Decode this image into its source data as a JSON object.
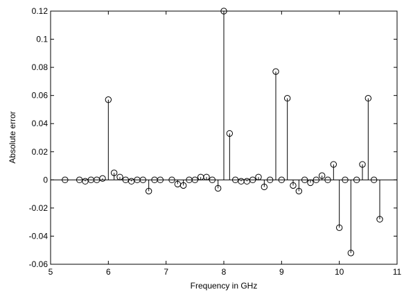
{
  "chart_data": {
    "type": "stem",
    "title": "",
    "xlabel": "Frequency in GHz",
    "ylabel": "Absolute error",
    "xlim": [
      5,
      11
    ],
    "ylim": [
      -0.06,
      0.12
    ],
    "xticks": [
      "5",
      "6",
      "7",
      "8",
      "9",
      "10",
      "11"
    ],
    "yticks": [
      "-0.06",
      "-0.04",
      "-0.02",
      "0",
      "0.02",
      "0.04",
      "0.06",
      "0.08",
      "0.1",
      "0.12"
    ],
    "grid": false,
    "legend": "none",
    "colors": {
      "stem": "#000000",
      "axis": "#000000",
      "background": "#ffffff"
    },
    "series": [
      {
        "x": [
          5.25,
          5.5,
          5.6,
          5.7,
          5.8,
          5.9,
          6.0,
          6.1,
          6.2,
          6.3,
          6.4,
          6.5,
          6.6,
          6.7,
          6.8,
          6.9,
          7.1,
          7.2,
          7.3,
          7.4,
          7.5,
          7.6,
          7.7,
          7.8,
          7.9,
          8.0,
          8.1,
          8.2,
          8.3,
          8.4,
          8.5,
          8.6,
          8.7,
          8.8,
          8.9,
          9.0,
          9.1,
          9.2,
          9.3,
          9.4,
          9.5,
          9.6,
          9.7,
          9.8,
          9.9,
          10.0,
          10.1,
          10.2,
          10.3,
          10.4,
          10.5,
          10.6,
          10.7
        ],
        "y": [
          0.0,
          0.0,
          -0.001,
          0.0,
          0.0,
          0.001,
          0.057,
          0.005,
          0.002,
          0.0,
          -0.001,
          0.0,
          0.0,
          -0.008,
          0.0,
          0.0,
          0.0,
          -0.003,
          -0.004,
          0.0,
          0.0,
          0.002,
          0.002,
          0.0,
          -0.006,
          0.12,
          0.033,
          0.0,
          -0.001,
          -0.001,
          0.0,
          0.002,
          -0.005,
          0.0,
          0.077,
          0.0,
          0.058,
          -0.004,
          -0.008,
          0.0,
          -0.002,
          0.0,
          0.003,
          0.0,
          0.011,
          -0.034,
          0.0,
          -0.052,
          0.0,
          0.011,
          0.058,
          0.0,
          -0.028
        ]
      }
    ]
  }
}
